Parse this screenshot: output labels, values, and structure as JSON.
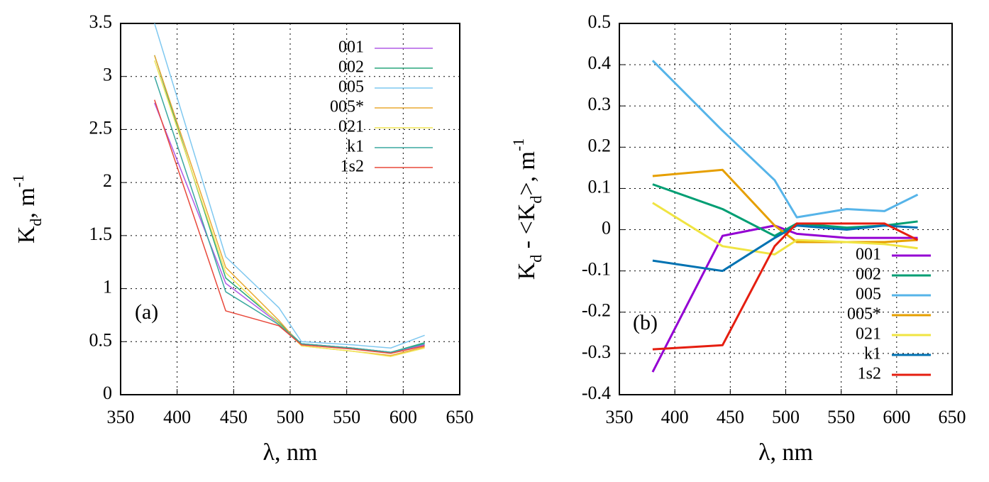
{
  "chart_data": [
    {
      "type": "line",
      "annotation": "(a)",
      "xlabel": "λ, nm",
      "ylabel": [
        "K",
        "d",
        ", m",
        "-1"
      ],
      "x": [
        380,
        443,
        490,
        510,
        555,
        589,
        619
      ],
      "xlim": [
        350,
        650
      ],
      "xticks": [
        350,
        400,
        450,
        500,
        550,
        600,
        650
      ],
      "ylim": [
        0,
        3.5
      ],
      "yticks": [
        0,
        0.5,
        1,
        1.5,
        2,
        2.5,
        3,
        3.5
      ],
      "grid": true,
      "legend": "top right",
      "line_width": 1.5,
      "series": [
        {
          "name": "001",
          "color": "#b05ce6",
          "values": [
            2.75,
            1.05,
            0.67,
            0.48,
            0.44,
            0.4,
            0.47
          ]
        },
        {
          "name": "002",
          "color": "#2aa77d",
          "values": [
            3.2,
            1.1,
            0.68,
            0.48,
            0.44,
            0.4,
            0.49
          ]
        },
        {
          "name": "005",
          "color": "#7fc8f0",
          "values": [
            3.5,
            1.3,
            0.82,
            0.5,
            0.47,
            0.44,
            0.56
          ]
        },
        {
          "name": "005*",
          "color": "#eaaa33",
          "values": [
            3.2,
            1.2,
            0.7,
            0.46,
            0.41,
            0.37,
            0.45
          ]
        },
        {
          "name": "021",
          "color": "#f2e65a",
          "values": [
            3.15,
            1.15,
            0.67,
            0.46,
            0.41,
            0.36,
            0.44
          ]
        },
        {
          "name": "k1",
          "color": "#3aa8a0",
          "values": [
            3.0,
            0.97,
            0.66,
            0.48,
            0.44,
            0.4,
            0.48
          ]
        },
        {
          "name": "1s2",
          "color": "#e8483a",
          "values": [
            2.78,
            0.79,
            0.65,
            0.47,
            0.43,
            0.39,
            0.46
          ]
        }
      ]
    },
    {
      "type": "line",
      "annotation": "(b)",
      "xlabel": "λ, nm",
      "ylabel": [
        "K",
        "d",
        " - <K",
        "d",
        ">, m",
        "-1"
      ],
      "x": [
        380,
        443,
        490,
        510,
        555,
        589,
        619
      ],
      "xlim": [
        350,
        650
      ],
      "xticks": [
        350,
        400,
        450,
        500,
        550,
        600,
        650
      ],
      "ylim": [
        -0.4,
        0.5
      ],
      "yticks": [
        -0.4,
        -0.3,
        -0.2,
        -0.1,
        0,
        0.1,
        0.2,
        0.3,
        0.4,
        0.5
      ],
      "grid": true,
      "legend": "bottom right",
      "line_width": 3,
      "series": [
        {
          "name": "001",
          "color": "#9400d3",
          "values": [
            -0.345,
            -0.015,
            0.01,
            -0.01,
            -0.02,
            -0.02,
            -0.02
          ]
        },
        {
          "name": "002",
          "color": "#009e73",
          "values": [
            0.11,
            0.05,
            -0.015,
            0.015,
            0.005,
            0.01,
            0.02
          ]
        },
        {
          "name": "005",
          "color": "#56b4e9",
          "values": [
            0.41,
            0.24,
            0.12,
            0.03,
            0.05,
            0.045,
            0.085
          ]
        },
        {
          "name": "005*",
          "color": "#e69f00",
          "values": [
            0.13,
            0.145,
            0.01,
            -0.03,
            -0.03,
            -0.03,
            -0.025
          ]
        },
        {
          "name": "021",
          "color": "#f0e442",
          "values": [
            0.065,
            -0.04,
            -0.06,
            -0.025,
            -0.03,
            -0.035,
            -0.045
          ]
        },
        {
          "name": "k1",
          "color": "#0072b2",
          "values": [
            -0.075,
            -0.1,
            -0.02,
            0.01,
            0.0,
            0.01,
            0.005
          ]
        },
        {
          "name": "1s2",
          "color": "#e51e10",
          "values": [
            -0.29,
            -0.28,
            -0.04,
            0.015,
            0.015,
            0.015,
            -0.025
          ]
        }
      ]
    }
  ]
}
